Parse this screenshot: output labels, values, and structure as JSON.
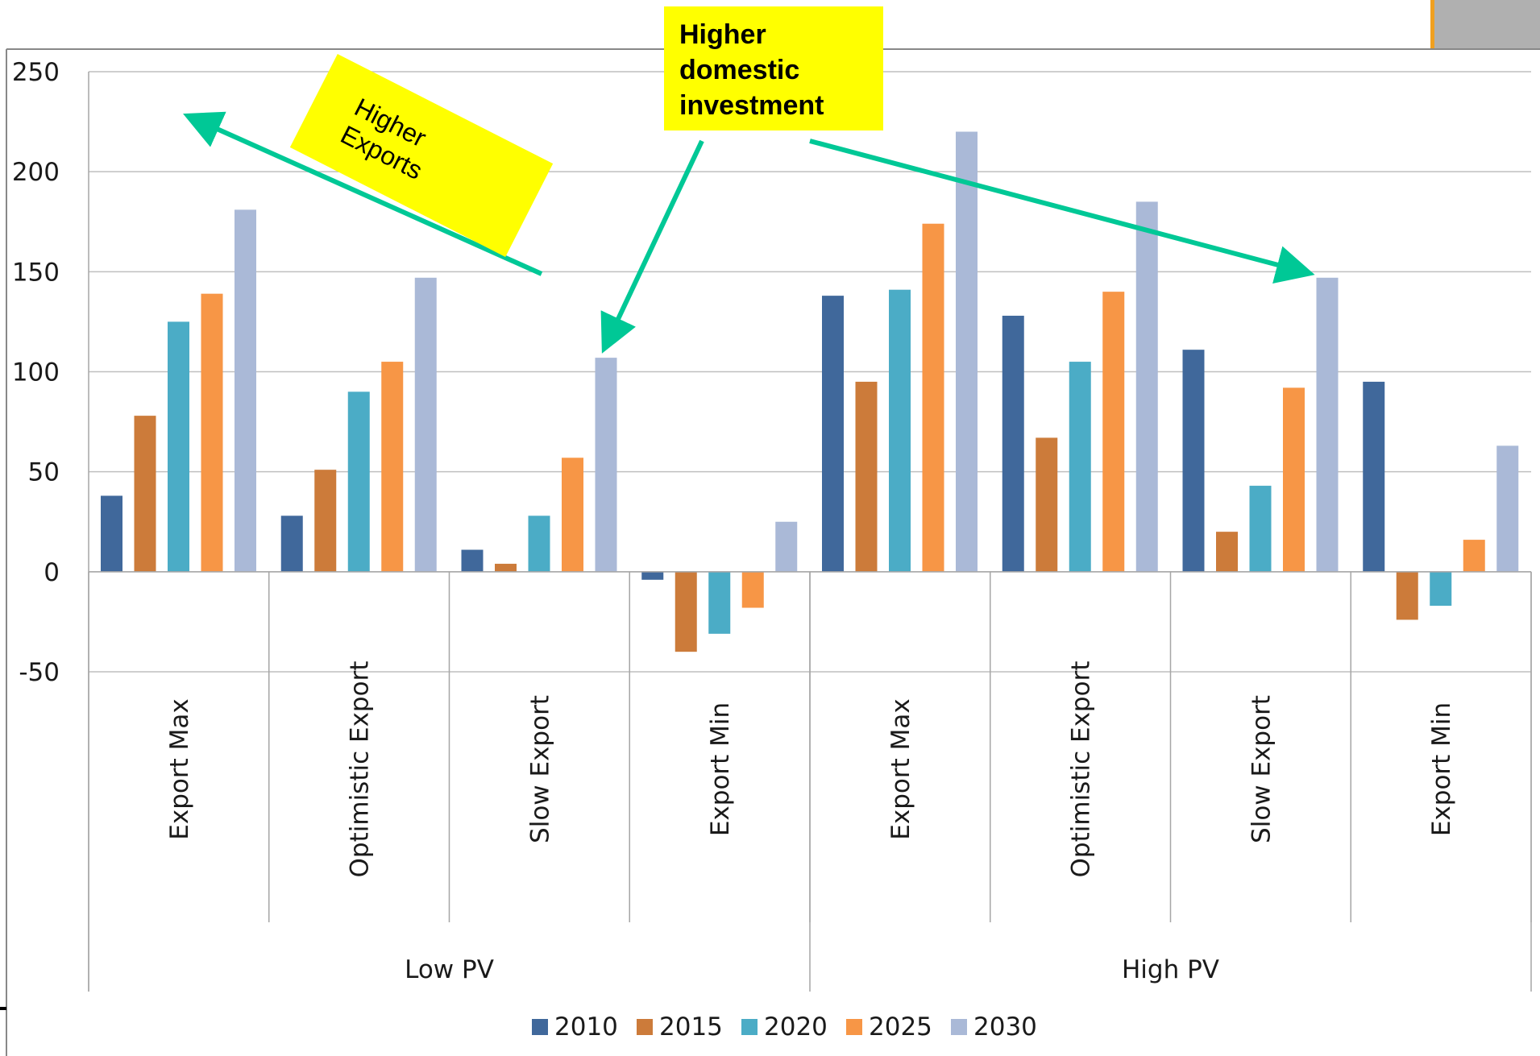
{
  "chart_data": {
    "type": "bar",
    "groups": [
      {
        "label": "Low PV",
        "categories": [
          "Export Max",
          "Optimistic Export",
          "Slow Export",
          "Export Min"
        ]
      },
      {
        "label": "High PV",
        "categories": [
          "Export Max",
          "Optimistic Export",
          "Slow Export",
          "Export Min"
        ]
      }
    ],
    "categories": [
      "Export Max",
      "Optimistic Export",
      "Slow Export",
      "Export Min",
      "Export Max",
      "Optimistic Export",
      "Slow Export",
      "Export Min"
    ],
    "series": [
      {
        "name": "2010",
        "color": "#40689b",
        "values": [
          38,
          28,
          11,
          -4,
          138,
          128,
          111,
          95
        ]
      },
      {
        "name": "2015",
        "color": "#cc7b3a",
        "values": [
          78,
          51,
          4,
          -40,
          95,
          67,
          20,
          -24
        ]
      },
      {
        "name": "2020",
        "color": "#4bacc6",
        "values": [
          125,
          90,
          28,
          -31,
          141,
          105,
          43,
          -17
        ]
      },
      {
        "name": "2025",
        "color": "#f79646",
        "values": [
          139,
          105,
          57,
          -18,
          174,
          140,
          92,
          16
        ]
      },
      {
        "name": "2030",
        "color": "#aab9d7",
        "values": [
          181,
          147,
          107,
          25,
          220,
          185,
          147,
          63
        ]
      }
    ],
    "ylim": [
      -50,
      250
    ],
    "yticks": [
      250,
      200,
      150,
      100,
      50,
      0,
      -50
    ],
    "grid": true,
    "legend_position": "bottom",
    "title": "",
    "xlabel": "",
    "ylabel": ""
  },
  "annotations": {
    "higher_exports": {
      "line1": "Higher",
      "line2": "Exports",
      "color": "#ffff00"
    },
    "higher_domestic": {
      "line1": "Higher",
      "line2": "domestic",
      "line3": "investment",
      "color": "#ffff00"
    },
    "arrow_color": "#00c896"
  }
}
